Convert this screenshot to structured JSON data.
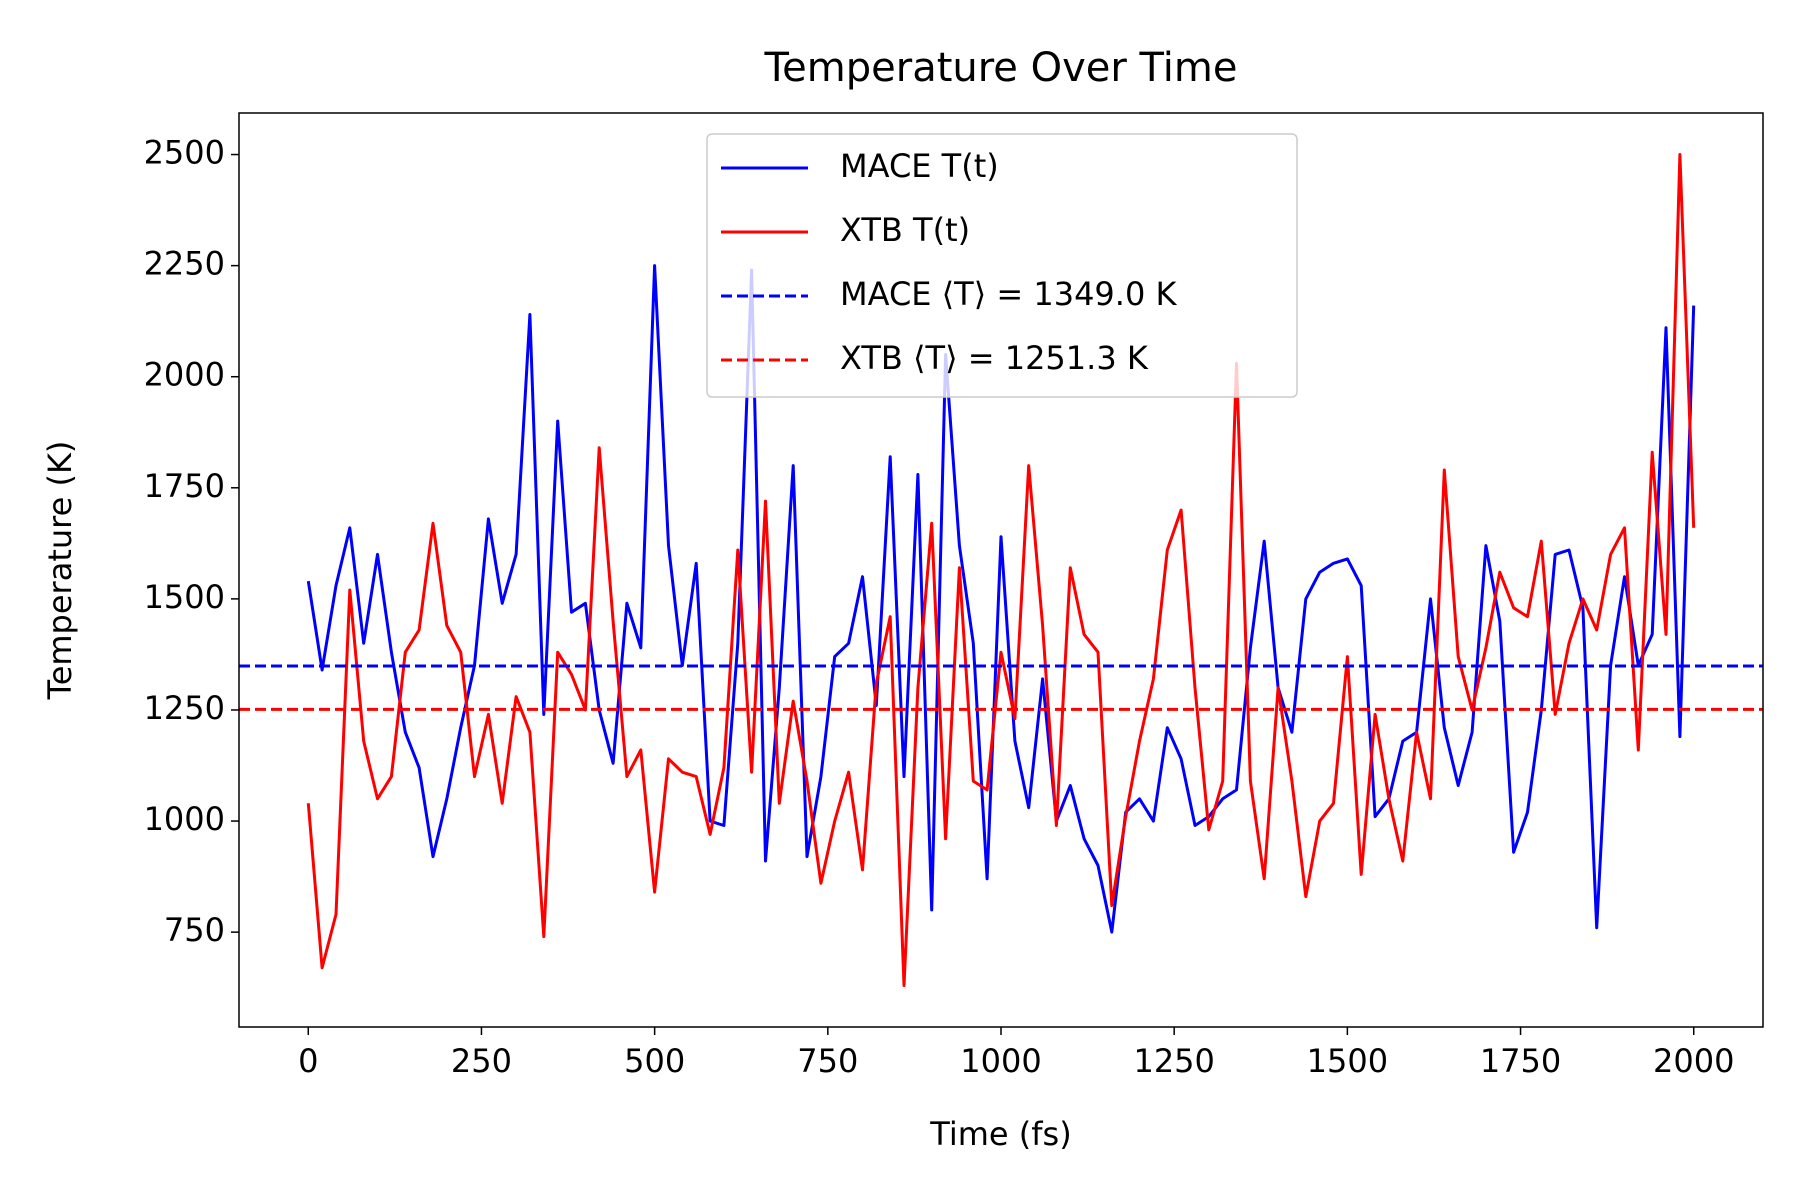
{
  "chart_data": {
    "type": "line",
    "title": "Temperature Over Time",
    "xlabel": "Time (fs)",
    "ylabel": "Temperature (K)",
    "x": [
      0,
      20,
      40,
      60,
      80,
      100,
      120,
      140,
      160,
      180,
      200,
      220,
      240,
      260,
      280,
      300,
      320,
      340,
      360,
      380,
      400,
      420,
      440,
      460,
      480,
      500,
      520,
      540,
      560,
      580,
      600,
      620,
      640,
      660,
      680,
      700,
      720,
      740,
      760,
      780,
      800,
      820,
      840,
      860,
      880,
      900,
      920,
      940,
      960,
      980,
      1000,
      1020,
      1040,
      1060,
      1080,
      1100,
      1120,
      1140,
      1160,
      1180,
      1200,
      1220,
      1240,
      1260,
      1280,
      1300,
      1320,
      1340,
      1360,
      1380,
      1400,
      1420,
      1440,
      1460,
      1480,
      1500,
      1520,
      1540,
      1560,
      1580,
      1600,
      1620,
      1640,
      1660,
      1680,
      1700,
      1720,
      1740,
      1760,
      1780,
      1800,
      1820,
      1840,
      1860,
      1880,
      1900,
      1920,
      1940,
      1960,
      1980,
      2000
    ],
    "series": [
      {
        "name": "MACE T(t)",
        "color": "#0000ff",
        "values": [
          1540,
          1340,
          1530,
          1660,
          1400,
          1600,
          1380,
          1200,
          1120,
          920,
          1050,
          1210,
          1350,
          1680,
          1490,
          1600,
          2140,
          1240,
          1900,
          1470,
          1490,
          1250,
          1130,
          1490,
          1390,
          2250,
          1620,
          1350,
          1580,
          1000,
          990,
          1400,
          2240,
          910,
          1300,
          1800,
          920,
          1100,
          1370,
          1400,
          1550,
          1260,
          1820,
          1100,
          1780,
          800,
          2050,
          1620,
          1400,
          870,
          1640,
          1180,
          1030,
          1320,
          1000,
          1080,
          960,
          900,
          750,
          1020,
          1050,
          1000,
          1210,
          1140,
          990,
          1010,
          1050,
          1070,
          1390,
          1630,
          1300,
          1200,
          1500,
          1560,
          1580,
          1590,
          1530,
          1010,
          1050,
          1180,
          1200,
          1500,
          1210,
          1080,
          1200,
          1620,
          1450,
          930,
          1020,
          1250,
          1600,
          1610,
          1480,
          760,
          1350,
          1550,
          1350,
          1420,
          2110,
          1190,
          2160
        ]
      },
      {
        "name": "XTB T(t)",
        "color": "#ff0000",
        "values": [
          1040,
          670,
          790,
          1520,
          1180,
          1050,
          1100,
          1380,
          1430,
          1670,
          1440,
          1380,
          1100,
          1240,
          1040,
          1280,
          1200,
          740,
          1380,
          1330,
          1250,
          1840,
          1450,
          1100,
          1160,
          840,
          1140,
          1110,
          1100,
          970,
          1120,
          1610,
          1110,
          1720,
          1040,
          1270,
          1090,
          860,
          1000,
          1110,
          890,
          1310,
          1460,
          630,
          1300,
          1670,
          960,
          1570,
          1090,
          1070,
          1380,
          1230,
          1800,
          1440,
          990,
          1570,
          1420,
          1380,
          810,
          1010,
          1180,
          1320,
          1610,
          1700,
          1300,
          980,
          1090,
          2030,
          1090,
          870,
          1300,
          1090,
          830,
          1000,
          1040,
          1370,
          880,
          1240,
          1050,
          910,
          1200,
          1050,
          1790,
          1370,
          1250,
          1390,
          1560,
          1480,
          1460,
          1630,
          1240,
          1400,
          1500,
          1430,
          1600,
          1660,
          1160,
          1830,
          1420,
          2500,
          1660
        ]
      }
    ],
    "hlines": [
      {
        "name": "MACE ⟨T⟩ = 1349.0 K",
        "color": "#0000ff",
        "value": 1349.0
      },
      {
        "name": "XTB ⟨T⟩ = 1251.3 K",
        "color": "#ff0000",
        "value": 1251.3
      }
    ],
    "xlim": [
      -100,
      2100
    ],
    "xticks": [
      0,
      250,
      500,
      750,
      1000,
      1250,
      1500,
      1750,
      2000
    ],
    "ylim": [
      536.5,
      2593.5
    ],
    "yticks": [
      750,
      1000,
      1250,
      1500,
      1750,
      2000,
      2250,
      2500
    ],
    "legend": "upper center"
  }
}
